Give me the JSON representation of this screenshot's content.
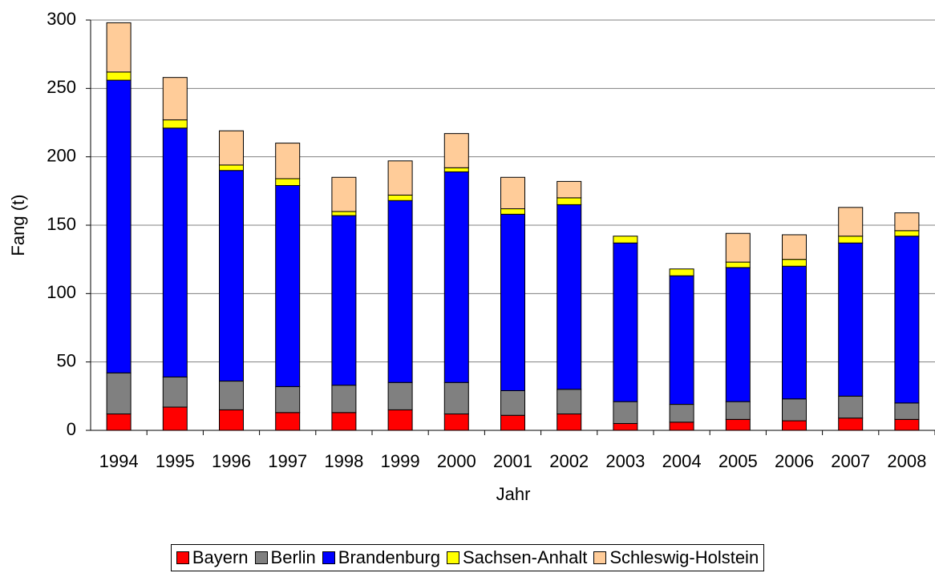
{
  "chart_data": {
    "type": "stacked-bar",
    "x_label": "Jahr",
    "y_label": "Fang (t)",
    "categories": [
      "1994",
      "1995",
      "1996",
      "1997",
      "1998",
      "1999",
      "2000",
      "2001",
      "2002",
      "2003",
      "2004",
      "2005",
      "2006",
      "2007",
      "2008"
    ],
    "series": [
      {
        "name": "Bayern",
        "color": "#ff0000",
        "values": [
          12,
          17,
          15,
          13,
          13,
          15,
          12,
          11,
          12,
          5,
          6,
          8,
          7,
          9,
          8
        ]
      },
      {
        "name": "Berlin",
        "color": "#808080",
        "values": [
          30,
          22,
          21,
          19,
          20,
          20,
          23,
          18,
          18,
          16,
          13,
          13,
          16,
          16,
          12
        ]
      },
      {
        "name": "Brandenburg",
        "color": "#0000ff",
        "values": [
          214,
          182,
          154,
          147,
          124,
          133,
          154,
          129,
          135,
          116,
          94,
          98,
          97,
          112,
          122
        ]
      },
      {
        "name": "Sachsen-Anhalt",
        "color": "#ffff00",
        "values": [
          6,
          6,
          4,
          5,
          3,
          4,
          3,
          4,
          5,
          5,
          5,
          4,
          5,
          5,
          4
        ]
      },
      {
        "name": "Schleswig-Holstein",
        "color": "#ffcc99",
        "values": [
          36,
          31,
          25,
          26,
          25,
          25,
          25,
          23,
          12,
          0,
          0,
          21,
          18,
          21,
          13
        ]
      }
    ],
    "ylim": [
      0,
      300
    ],
    "yticks": [
      0,
      50,
      100,
      150,
      200,
      250,
      300
    ],
    "grid": true
  }
}
